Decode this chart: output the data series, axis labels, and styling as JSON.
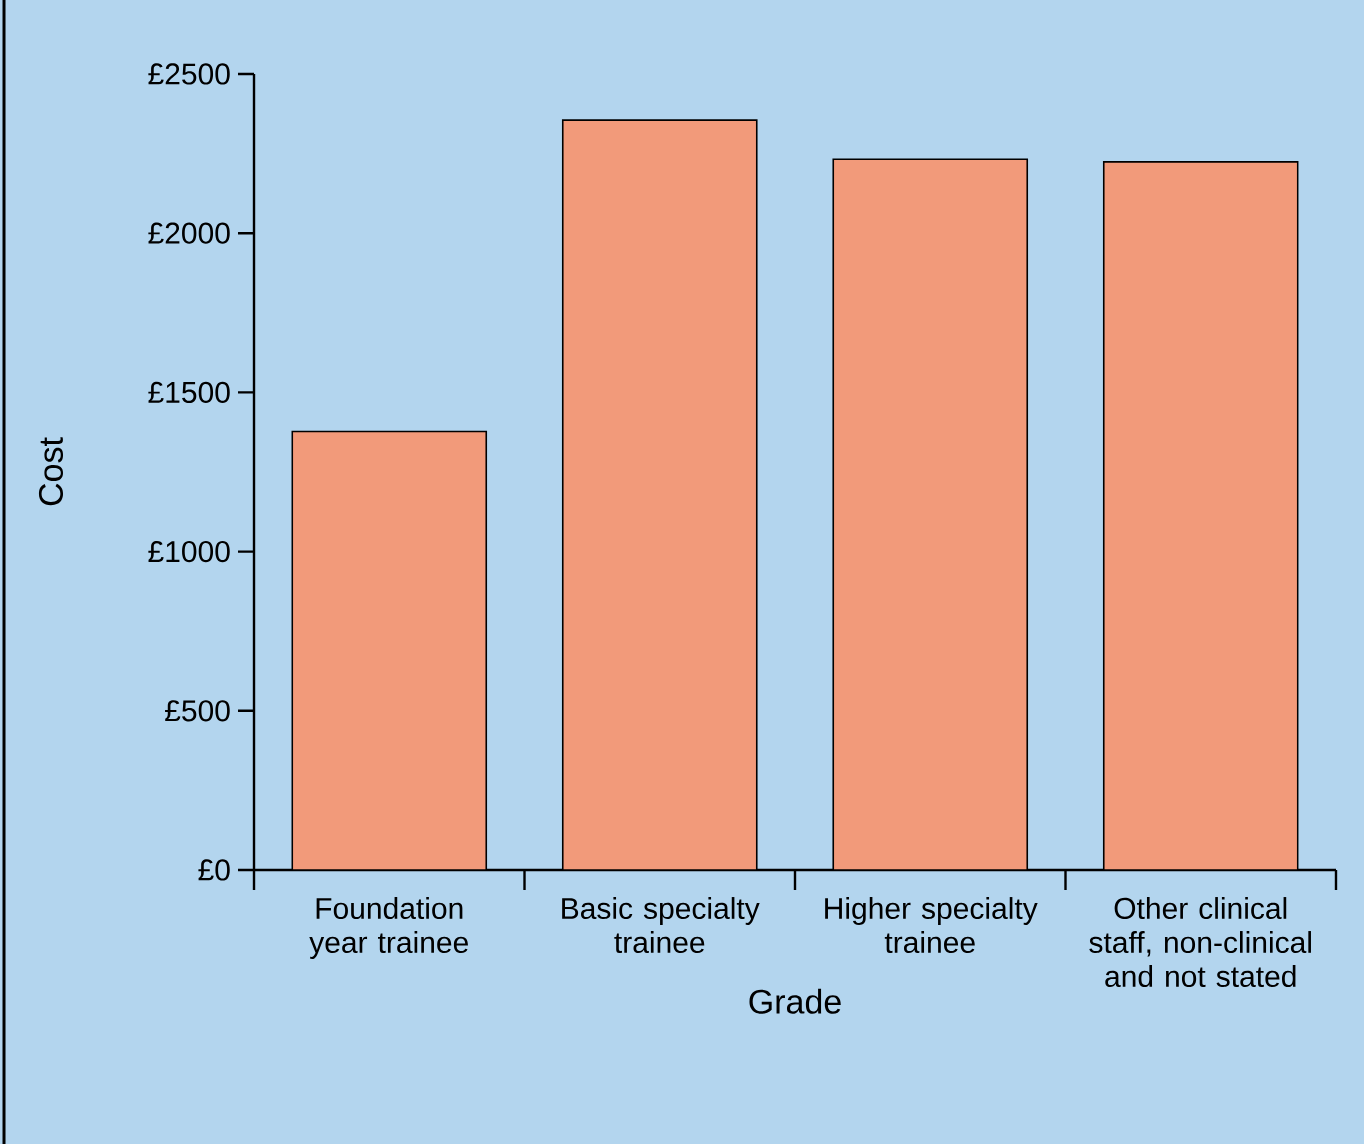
{
  "chart_data": {
    "type": "bar",
    "xlabel": "Grade",
    "ylabel": "Cost",
    "categories": [
      "Foundation year trainee",
      "Basic specialty trainee",
      "Higher specialty trainee",
      "Other clinical staff, non-clinical and not stated"
    ],
    "values": [
      1377,
      2355,
      2232,
      2224
    ],
    "color": "#f29a7a",
    "ylim": [
      0,
      2500
    ],
    "yticks": [
      {
        "value": 0,
        "label": "£0"
      },
      {
        "value": 500,
        "label": "£500"
      },
      {
        "value": 1000,
        "label": "£1000"
      },
      {
        "value": 1500,
        "label": "£1500"
      },
      {
        "value": 2000,
        "label": "£2000"
      },
      {
        "value": 2500,
        "label": "£2500"
      }
    ]
  }
}
